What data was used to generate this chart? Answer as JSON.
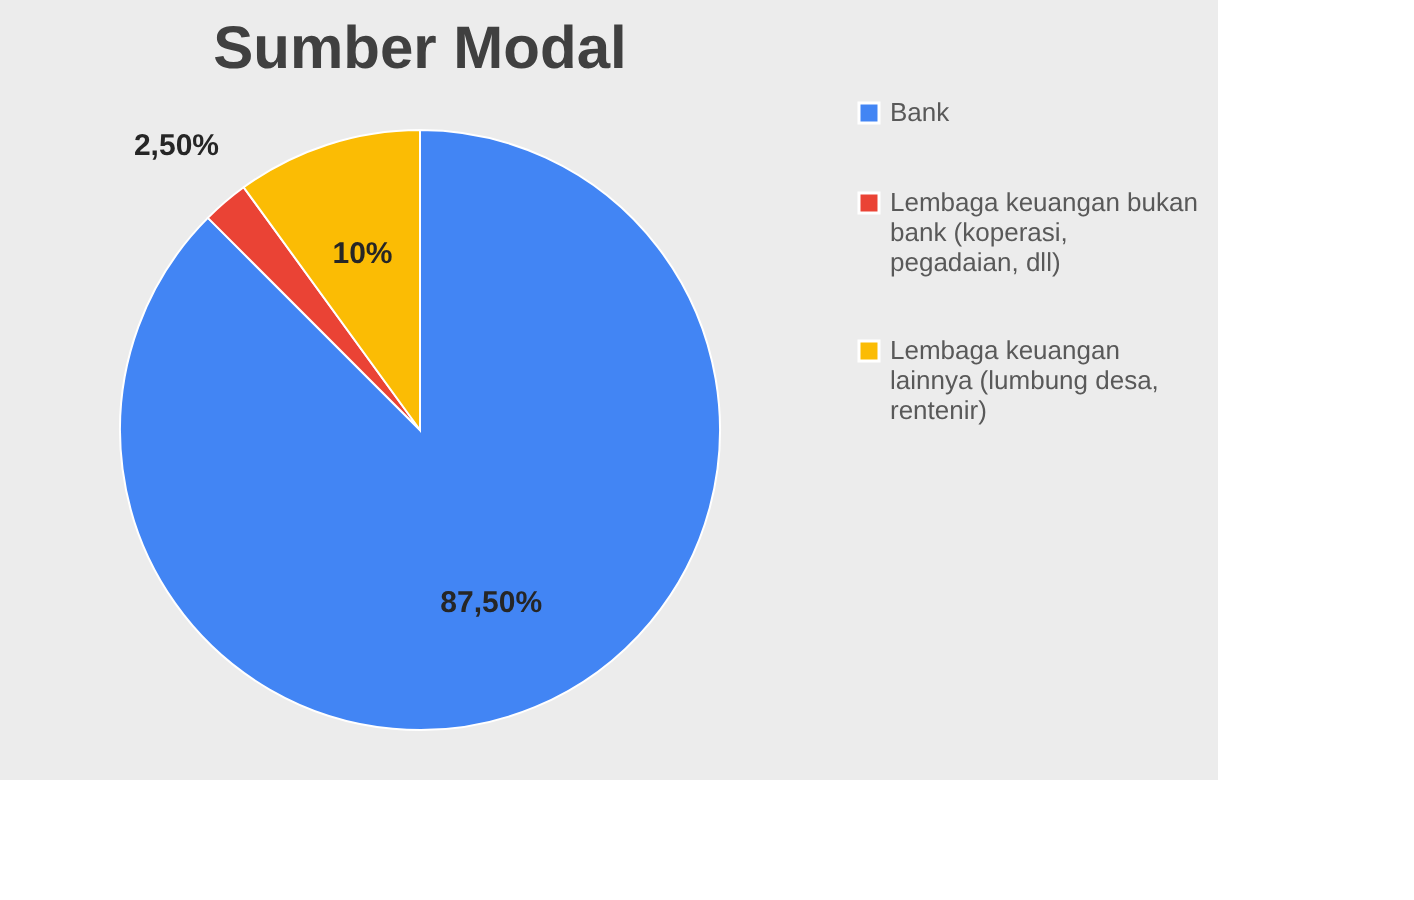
{
  "chart_data": {
    "type": "pie",
    "title": "Sumber Modal",
    "categories": [
      "Bank",
      "Lembaga keuangan bukan bank (koperasi, pegadaian, dll)",
      "Lembaga keuangan lainnya (lumbung desa, rentenir)"
    ],
    "values": [
      87.5,
      2.5,
      10
    ],
    "colors": [
      "#4285f4",
      "#ea4335",
      "#fbbc04"
    ],
    "value_labels": [
      "87,50%",
      "2,50%",
      "10%"
    ],
    "legend": "right"
  }
}
